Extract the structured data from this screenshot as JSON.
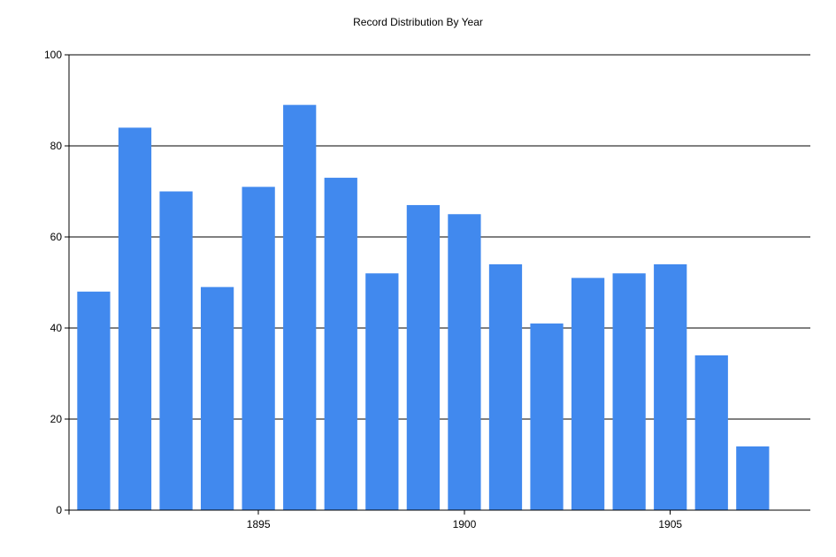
{
  "chart_data": {
    "type": "bar",
    "title": "Record Distribution By Year",
    "xlabel": "",
    "ylabel": "",
    "categories": [
      1891,
      1892,
      1893,
      1894,
      1895,
      1896,
      1897,
      1898,
      1899,
      1900,
      1901,
      1902,
      1903,
      1904,
      1905,
      1906,
      1907
    ],
    "values": [
      48,
      84,
      70,
      49,
      71,
      89,
      73,
      52,
      67,
      65,
      54,
      41,
      51,
      52,
      54,
      34,
      14
    ],
    "ylim": [
      0,
      100
    ],
    "y_ticks": [
      0,
      20,
      40,
      60,
      80,
      100
    ],
    "x_ticks": [
      1895,
      1900,
      1905
    ],
    "xlim": [
      1890.4,
      1908.4
    ],
    "grid": "horizontal",
    "legend": "none",
    "bar_color": "#4189EE"
  }
}
